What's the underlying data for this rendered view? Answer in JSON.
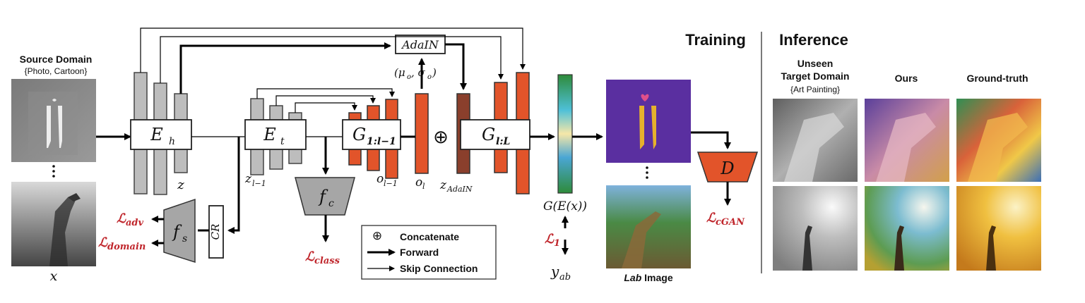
{
  "source": {
    "title": "Source Domain",
    "subtitle": "{Photo, Cartoon}",
    "input_label": "x"
  },
  "encoders": {
    "eh": "E",
    "eh_sub": "h",
    "et": "E",
    "et_sub": "t",
    "z": "z",
    "z_l1": "z",
    "z_l1_sub": "l−1"
  },
  "generators": {
    "g1": "G",
    "g1_sub": "1:l−1",
    "g2": "G",
    "g2_sub": "l:L",
    "o_l1": "o",
    "o_l1_sub": "l−1",
    "o_l": "o",
    "o_l_sub": "l",
    "adain": "AdaIN",
    "mu_sigma": "(μ",
    "mu_sub": "o",
    "mu_subsub": "l",
    "sigma": ", σ",
    "z_adain": "z",
    "z_adain_sub": "AdaIN",
    "concat_symbol": "⊕"
  },
  "heads": {
    "fc": "f",
    "fc_sub": "c",
    "fs": "f",
    "fs_sub": "s",
    "cr": "CR",
    "d": "D"
  },
  "losses": {
    "class": "class",
    "adv": "adv",
    "domain": "domain",
    "l1": "1",
    "cgan": "cGAN",
    "symbol": "ℒ"
  },
  "outputs": {
    "gex": "G(E(x))",
    "yab": "y",
    "yab_sub": "ab",
    "lab_bold": "Lab",
    "lab_rest": " Image"
  },
  "legend": {
    "concat": "Concatenate",
    "forward": "Forward",
    "skip": "Skip Connection"
  },
  "sections": {
    "training": "Training",
    "inference": "Inference"
  },
  "inference": {
    "col1_line1": "Unseen",
    "col1_line2": "Target Domain",
    "col1_line3": "{Art Painting}",
    "col2": "Ours",
    "col3": "Ground-truth"
  },
  "colors": {
    "feature_orange": "#e2542a",
    "adain_brown": "#8a3f2c",
    "loss_red": "#c0272d",
    "encoder_gray": "#bdbdbd",
    "purple_bg": "#5a2fa0"
  }
}
